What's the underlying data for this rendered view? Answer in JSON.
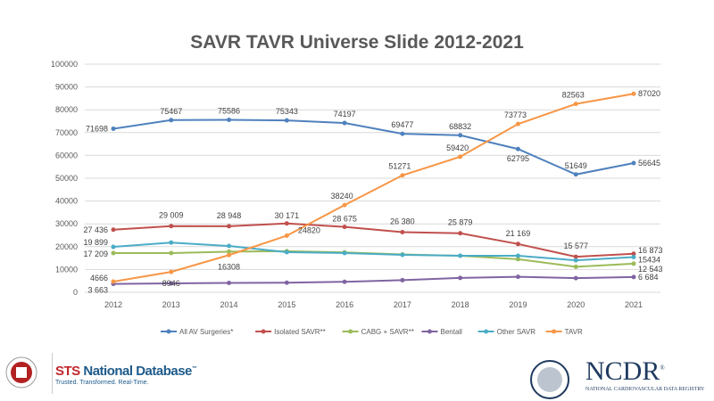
{
  "chart_data": {
    "type": "line",
    "title": "SAVR TAVR Universe Slide 2012-2021",
    "categories": [
      "2012",
      "2013",
      "2014",
      "2015",
      "2016",
      "2017",
      "2018",
      "2019",
      "2020",
      "2021"
    ],
    "ylim": [
      0,
      100000
    ],
    "yticks": [
      "0",
      "10000",
      "20000",
      "30000",
      "40000",
      "50000",
      "60000",
      "70000",
      "80000",
      "90000",
      "100000"
    ],
    "grid": true,
    "legend": "bottom",
    "series": [
      {
        "name": "All AV Surgeries*",
        "color": "#4f81bd",
        "values": [
          71698,
          75467,
          75586,
          75343,
          74197,
          69477,
          68832,
          62795,
          51649,
          56645
        ],
        "labels": [
          "71698",
          "75467",
          "75586",
          "75343",
          "74197",
          "69477",
          "68832",
          "62795",
          "51649",
          "56645"
        ]
      },
      {
        "name": "Isolated SAVR**",
        "color": "#c0504d",
        "values": [
          27436,
          29009,
          28948,
          30171,
          28675,
          26380,
          25879,
          21169,
          15577,
          16873
        ],
        "labels": [
          "27 436",
          "29 009",
          "28 948",
          "30 171",
          "28 675",
          "26 380",
          "25 879",
          "21 169",
          "15 577",
          "16 873"
        ]
      },
      {
        "name": "CABG + SAVR**",
        "color": "#9bbb59",
        "values": [
          17209,
          17200,
          17800,
          18000,
          17500,
          16600,
          16000,
          14500,
          11200,
          12543
        ],
        "labels": [
          "17 209",
          "",
          "",
          "",
          "",
          "",
          "",
          "",
          "",
          "12 543"
        ]
      },
      {
        "name": "Bentall",
        "color": "#8064a2",
        "values": [
          3663,
          3900,
          4100,
          4200,
          4600,
          5300,
          6300,
          6800,
          6200,
          6684
        ],
        "labels": [
          "3 663",
          "",
          "",
          "",
          "",
          "",
          "",
          "",
          "",
          "6 684"
        ]
      },
      {
        "name": "Other SAVR",
        "color": "#4bacc6",
        "values": [
          19899,
          21800,
          20300,
          17600,
          17200,
          16400,
          16000,
          16000,
          14000,
          15434
        ],
        "labels": [
          "19 899",
          "",
          "",
          "",
          "",
          "",
          "",
          "",
          "",
          "15434"
        ]
      },
      {
        "name": "TAVR",
        "color": "#f79646",
        "values": [
          4666,
          8946,
          16308,
          24820,
          38240,
          51271,
          59420,
          73773,
          82563,
          87020
        ],
        "labels": [
          "4666",
          "8946",
          "16308",
          "24820",
          "38240",
          "51271",
          "59420",
          "73773",
          "82563",
          "87020"
        ]
      }
    ]
  },
  "footer": {
    "sts_brand": "STS",
    "sts_name": "National Database",
    "sts_tm": "™",
    "sts_tagline": "Trusted. Transformed. Real-Time.",
    "ncdr_name": "NCDR",
    "ncdr_reg": "®",
    "ncdr_full": "NATIONAL CARDIOVASCULAR DATA REGISTRY"
  }
}
